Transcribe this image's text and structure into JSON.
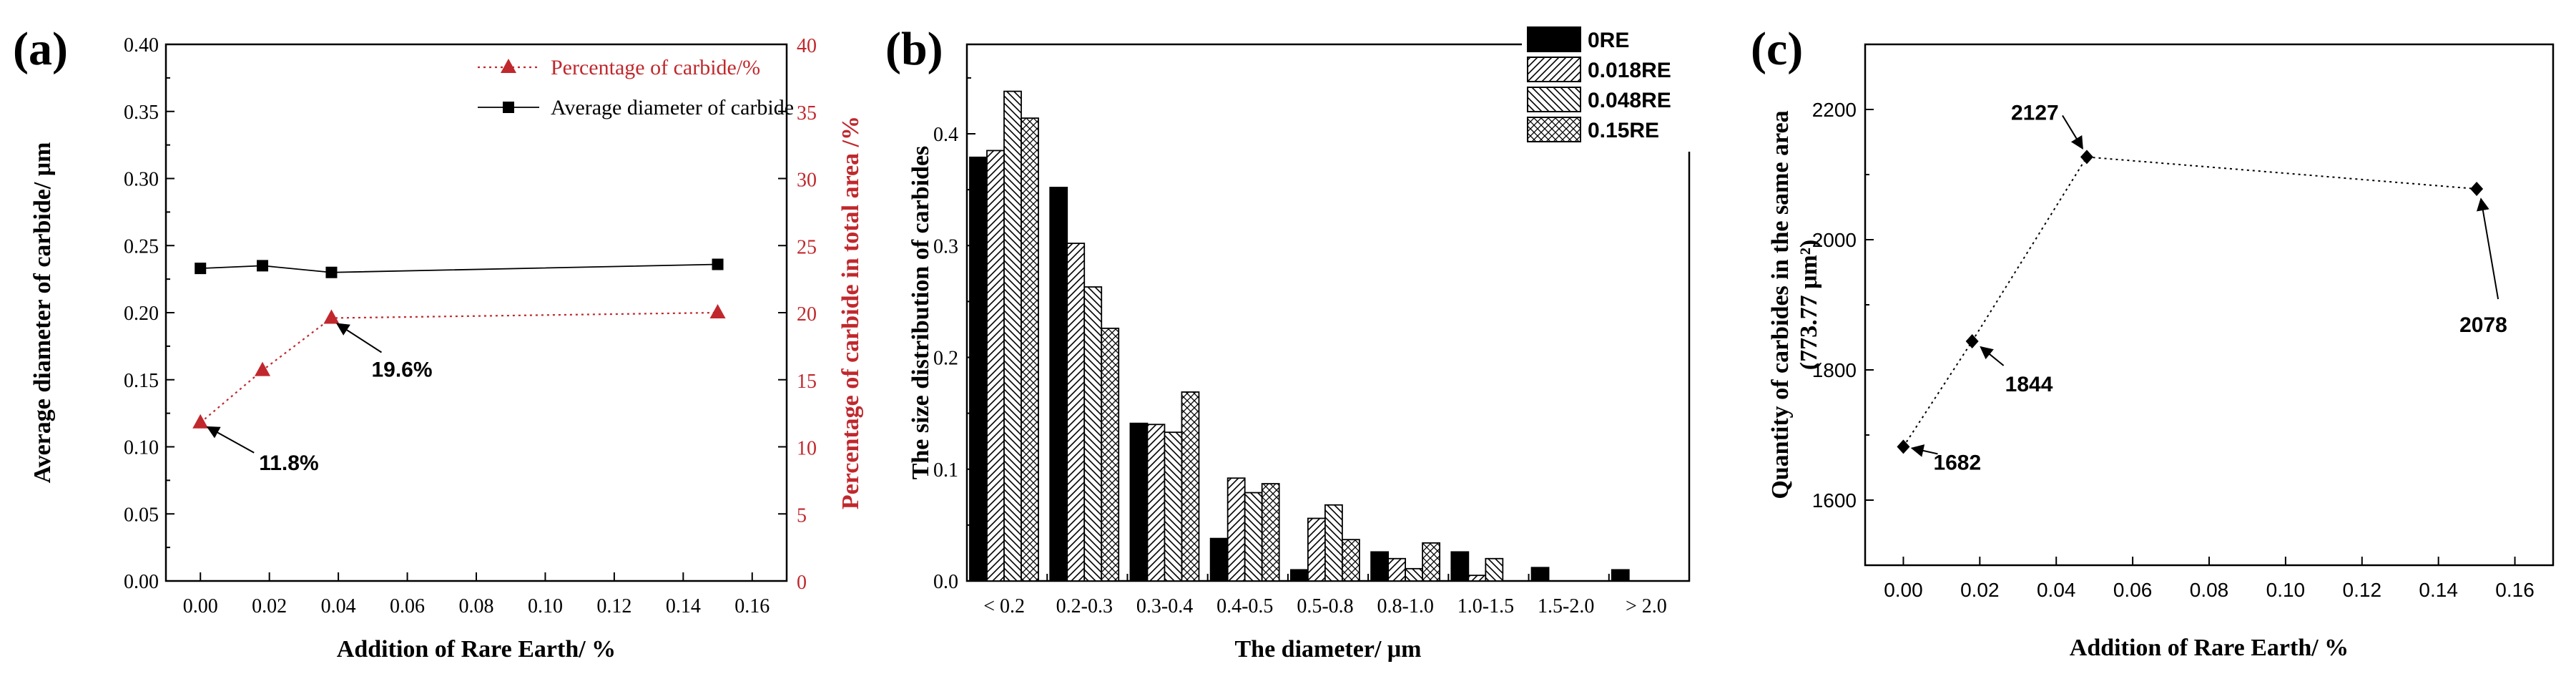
{
  "chart_data": [
    {
      "panel": "(a)",
      "type": "line",
      "xlabel": "Addition of Rare Earth/ %",
      "ylabel": "Average diameter of carbide/ μm",
      "y2label": "Percentage of carbide in total area /%",
      "xlim": [
        -0.01,
        0.17
      ],
      "xticks": [
        "0.00",
        "0.02",
        "0.04",
        "0.06",
        "0.08",
        "0.10",
        "0.12",
        "0.14",
        "0.16"
      ],
      "xtick_values": [
        0,
        0.02,
        0.04,
        0.06,
        0.08,
        0.1,
        0.12,
        0.14,
        0.16
      ],
      "ylim": [
        0,
        0.4
      ],
      "yticks": [
        "0.00",
        "0.05",
        "0.10",
        "0.15",
        "0.20",
        "0.25",
        "0.30",
        "0.35",
        "0.40"
      ],
      "y2lim": [
        0,
        40
      ],
      "y2ticks": [
        "0",
        "5",
        "10",
        "15",
        "20",
        "25",
        "30",
        "35",
        "40"
      ],
      "legend_position": "top-right",
      "series": [
        {
          "name": "Percentage of carbide/%",
          "axis": "right",
          "marker": "triangle",
          "line": "dotted",
          "color": "#c0282d",
          "x": [
            0,
            0.018,
            0.038,
            0.15
          ],
          "y": [
            11.8,
            15.7,
            19.6,
            20.0
          ]
        },
        {
          "name": "Average diameter of carbide",
          "axis": "left",
          "marker": "square",
          "line": "solid",
          "color": "#000000",
          "x": [
            0,
            0.018,
            0.038,
            0.15
          ],
          "y": [
            0.233,
            0.235,
            0.23,
            0.236
          ]
        }
      ],
      "annotations": [
        {
          "text": "11.8%",
          "x": 0,
          "y": 11.8,
          "axis": "right"
        },
        {
          "text": "19.6%",
          "x": 0.038,
          "y": 19.6,
          "axis": "right"
        }
      ]
    },
    {
      "panel": "(b)",
      "type": "bar",
      "xlabel": "The diameter/ μm",
      "ylabel": "The size distribution of carbides",
      "categories": [
        "< 0.2",
        "0.2-0.3",
        "0.3-0.4",
        "0.4-0.5",
        "0.5-0.8",
        "0.8-1.0",
        "1.0-1.5",
        "1.5-2.0",
        "> 2.0"
      ],
      "ylim": [
        0,
        0.48
      ],
      "yticks": [
        "0.0",
        "0.1",
        "0.2",
        "0.3",
        "0.4"
      ],
      "ytick_values": [
        0,
        0.1,
        0.2,
        0.3,
        0.4
      ],
      "legend_position": "top-right",
      "series": [
        {
          "name": "0RE",
          "pattern": "solid",
          "values": [
            0.379,
            0.352,
            0.141,
            0.038,
            0.01,
            0.026,
            0.026,
            0.012,
            0.01
          ]
        },
        {
          "name": "0.018RE",
          "pattern": "diag-right",
          "values": [
            0.385,
            0.302,
            0.14,
            0.092,
            0.056,
            0.02,
            0.005,
            0,
            0
          ]
        },
        {
          "name": "0.048RE",
          "pattern": "diag-left",
          "values": [
            0.438,
            0.263,
            0.133,
            0.079,
            0.068,
            0.011,
            0.02,
            0,
            0
          ]
        },
        {
          "name": "0.15RE",
          "pattern": "cross",
          "values": [
            0.414,
            0.226,
            0.169,
            0.087,
            0.037,
            0.034,
            0,
            0,
            0
          ]
        }
      ]
    },
    {
      "panel": "(c)",
      "type": "line",
      "xlabel": "Addition of Rare Earth/ %",
      "ylabel": "Quantity of carbides in the same area",
      "ylabel2": "(773.77 μm²)",
      "xlim": [
        -0.01,
        0.17
      ],
      "xticks": [
        "0.00",
        "0.02",
        "0.04",
        "0.06",
        "0.08",
        "0.10",
        "0.12",
        "0.14",
        "0.16"
      ],
      "xtick_values": [
        0,
        0.02,
        0.04,
        0.06,
        0.08,
        0.1,
        0.12,
        0.14,
        0.16
      ],
      "ylim": [
        1500,
        2300
      ],
      "yticks": [
        "1600",
        "1800",
        "2000",
        "2200"
      ],
      "ytick_values": [
        1600,
        1800,
        2000,
        2200
      ],
      "series": [
        {
          "name": "",
          "marker": "diamond",
          "line": "dotted",
          "color": "#000000",
          "x": [
            0,
            0.018,
            0.048,
            0.15
          ],
          "y": [
            1682,
            1844,
            2127,
            2078
          ]
        }
      ],
      "annotations": [
        {
          "text": "1682",
          "x": 0,
          "y": 1682
        },
        {
          "text": "1844",
          "x": 0.018,
          "y": 1844
        },
        {
          "text": "2127",
          "x": 0.048,
          "y": 2127
        },
        {
          "text": "2078",
          "x": 0.15,
          "y": 2078
        }
      ]
    }
  ]
}
